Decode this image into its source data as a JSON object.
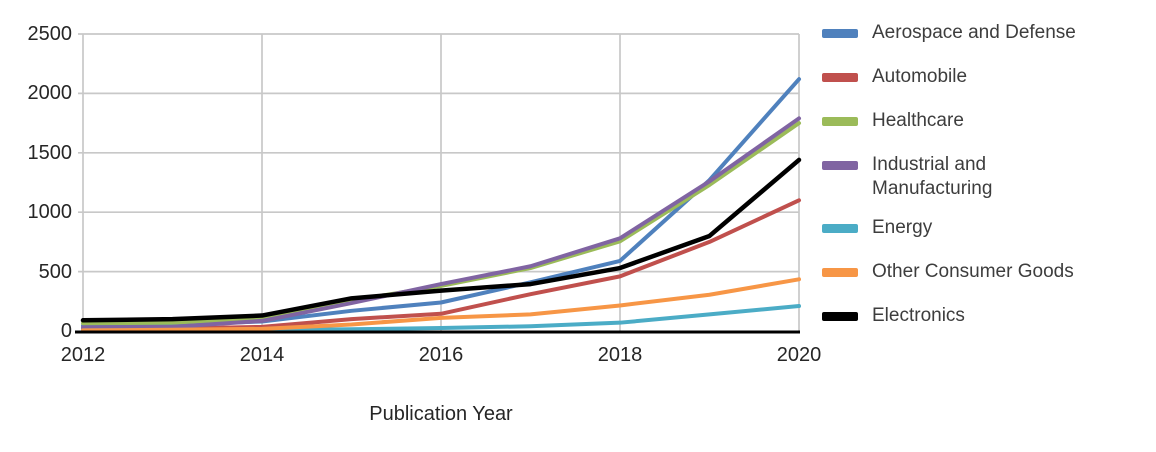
{
  "chart_data": {
    "type": "line",
    "title": "",
    "xlabel": "Publication Year",
    "ylabel": "",
    "x": [
      2012,
      2013,
      2014,
      2015,
      2016,
      2017,
      2018,
      2019,
      2020
    ],
    "x_tick_labels": [
      "2012",
      "2014",
      "2016",
      "2018",
      "2020"
    ],
    "x_tick_values": [
      2012,
      2014,
      2016,
      2018,
      2020
    ],
    "y_ticks": [
      0,
      500,
      1000,
      1500,
      2000,
      2500
    ],
    "xlim": [
      2012,
      2020
    ],
    "ylim": [
      0,
      2500
    ],
    "grid": true,
    "legend_position": "right",
    "axis_color": "#c8c8c8",
    "x_axis_line_color": "#000000",
    "series": [
      {
        "name": "Aerospace and Defense",
        "color": "#4F81BD",
        "values": [
          45,
          55,
          80,
          170,
          240,
          410,
          590,
          1270,
          2120
        ]
      },
      {
        "name": "Automobile",
        "color": "#C0504D",
        "values": [
          15,
          20,
          35,
          100,
          145,
          310,
          460,
          750,
          1100
        ]
      },
      {
        "name": "Healthcare",
        "color": "#9BBB59",
        "values": [
          65,
          70,
          110,
          255,
          380,
          530,
          755,
          1230,
          1750
        ]
      },
      {
        "name": "Industrial and Manufacturing",
        "color": "#8064A2",
        "values": [
          30,
          35,
          85,
          235,
          395,
          545,
          780,
          1260,
          1790
        ]
      },
      {
        "name": "Energy",
        "color": "#4BACC6",
        "values": [
          5,
          6,
          8,
          15,
          25,
          40,
          70,
          140,
          210
        ]
      },
      {
        "name": "Other Consumer Goods",
        "color": "#F79646",
        "values": [
          5,
          10,
          18,
          55,
          110,
          140,
          215,
          305,
          435
        ]
      },
      {
        "name": "Electronics",
        "color": "#000000",
        "values": [
          90,
          100,
          130,
          275,
          340,
          395,
          530,
          800,
          1440
        ]
      }
    ]
  }
}
